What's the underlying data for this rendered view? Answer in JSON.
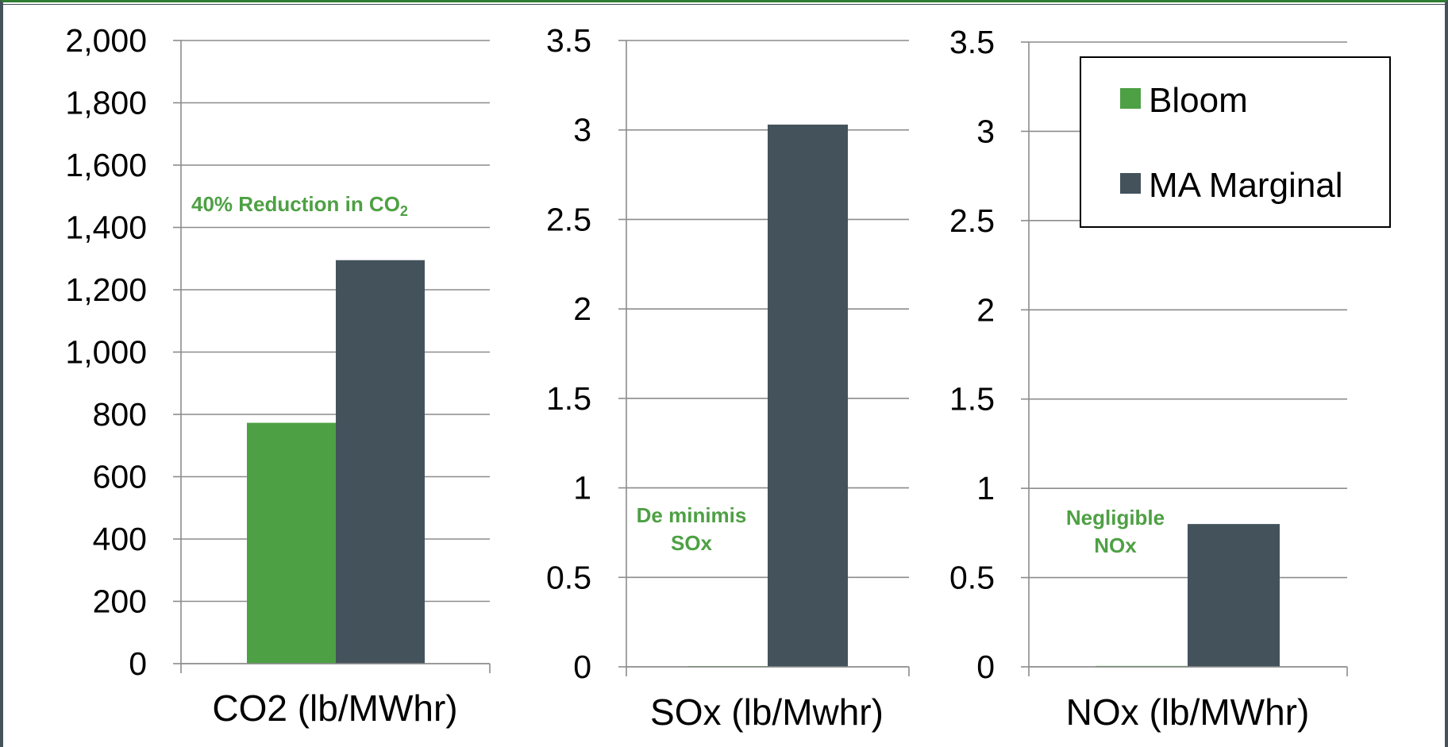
{
  "colors": {
    "bloom": "#4ea044",
    "ma_marginal": "#44525c",
    "grid": "#8c8c8c",
    "annotation": "#4ea044"
  },
  "chart_data": [
    {
      "type": "bar",
      "xlabel": "CO2 (lb/MWhr)",
      "ylim": [
        0,
        2000
      ],
      "yticks": [
        "0",
        "200",
        "400",
        "600",
        "800",
        "1,000",
        "1,200",
        "1,400",
        "1,600",
        "1,800",
        "2,000"
      ],
      "yticks_values": [
        0,
        200,
        400,
        600,
        800,
        1000,
        1200,
        1400,
        1600,
        1800,
        2000
      ],
      "series": [
        {
          "name": "Bloom",
          "values": [
            773
          ]
        },
        {
          "name": "MA Marginal",
          "values": [
            1295
          ]
        }
      ],
      "annotation": {
        "text": "40% Reduction in CO",
        "sub": "2"
      }
    },
    {
      "type": "bar",
      "xlabel": "SOx (lb/Mwhr)",
      "ylim": [
        0,
        3.5
      ],
      "yticks": [
        "0",
        "0.5",
        "1",
        "1.5",
        "2",
        "2.5",
        "3",
        "3.5"
      ],
      "yticks_values": [
        0,
        0.5,
        1,
        1.5,
        2,
        2.5,
        3,
        3.5
      ],
      "series": [
        {
          "name": "Bloom",
          "values": [
            0
          ]
        },
        {
          "name": "MA Marginal",
          "values": [
            3.03
          ]
        }
      ],
      "annotation": {
        "lines": [
          "De minimis",
          "SOx"
        ]
      }
    },
    {
      "type": "bar",
      "xlabel": "NOx (lb/MWhr)",
      "ylim": [
        0,
        3.5
      ],
      "yticks": [
        "0",
        "0.5",
        "1",
        "1.5",
        "2",
        "2.5",
        "3",
        "3.5"
      ],
      "yticks_values": [
        0,
        0.5,
        1,
        1.5,
        2,
        2.5,
        3,
        3.5
      ],
      "series": [
        {
          "name": "Bloom",
          "values": [
            0.005
          ]
        },
        {
          "name": "MA Marginal",
          "values": [
            0.8
          ]
        }
      ],
      "annotation": {
        "lines": [
          "Negligible",
          "NOx"
        ]
      }
    }
  ],
  "legend": {
    "items": [
      {
        "label": "Bloom"
      },
      {
        "label": "MA Marginal"
      }
    ]
  }
}
